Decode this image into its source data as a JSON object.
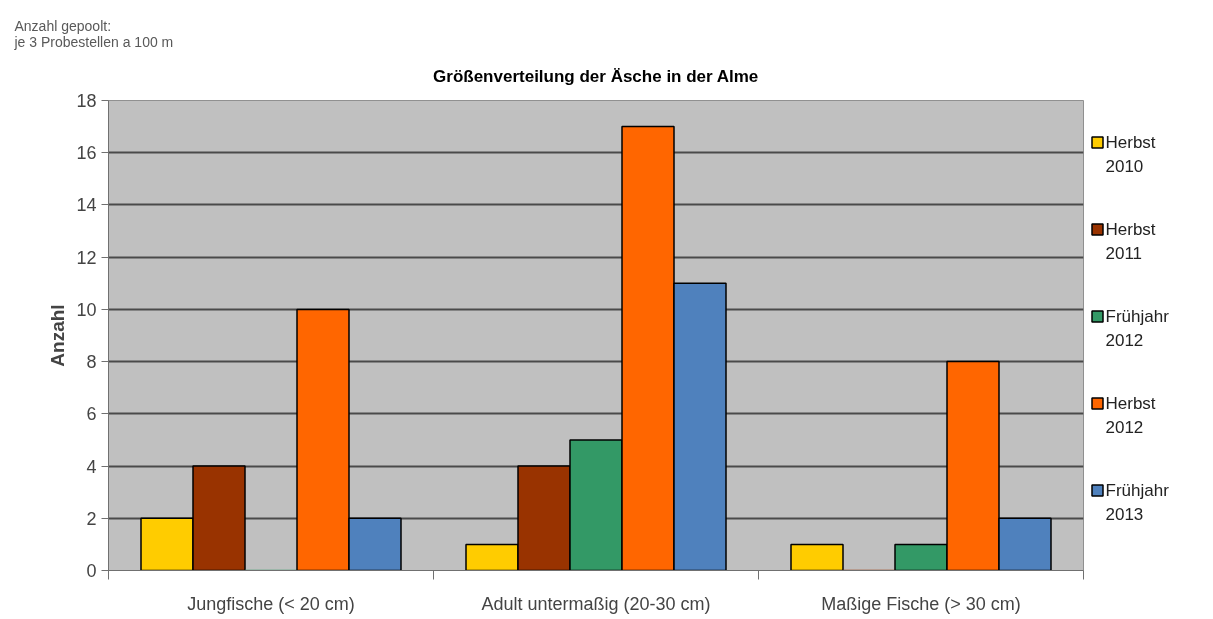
{
  "chart_data": {
    "type": "bar",
    "title": "Größenverteilung der Äsche in der Alme",
    "ylabel": "Anzahl",
    "annotations": [
      "Anzahl gepoolt:\nje 3 Probestellen a 100 m"
    ],
    "categories": [
      "Jungfische (< 20 cm)",
      "Adult untermaßig (20-30 cm)",
      "Maßige Fische (> 30 cm)"
    ],
    "series": [
      {
        "name": "Herbst 2010",
        "color": "#ffcc00",
        "values": [
          2,
          1,
          1
        ]
      },
      {
        "name": "Herbst 2011",
        "color": "#993300",
        "values": [
          4,
          4,
          0
        ]
      },
      {
        "name": "Frühjahr 2012",
        "color": "#339966",
        "values": [
          0,
          5,
          1
        ]
      },
      {
        "name": "Herbst 2012",
        "color": "#ff6600",
        "values": [
          10,
          17,
          8
        ]
      },
      {
        "name": "Frühjahr 2013",
        "color": "#4f81bd",
        "values": [
          2,
          11,
          2
        ]
      }
    ],
    "ylim": [
      0,
      18
    ],
    "yticks": [
      0,
      2,
      4,
      6,
      8,
      10,
      12,
      14,
      16,
      18
    ],
    "grid": "y",
    "legend": "right"
  }
}
